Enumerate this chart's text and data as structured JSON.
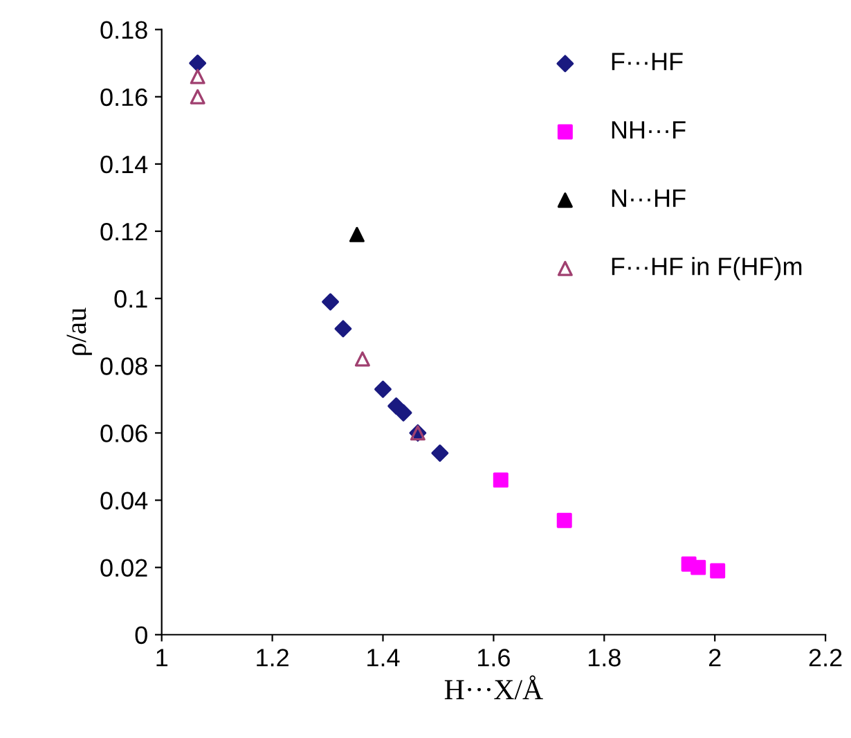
{
  "chart_data": {
    "type": "scatter",
    "xlabel": "H···X/Å",
    "ylabel": "ρ/au",
    "xlim": [
      1,
      2.2
    ],
    "xticks": [
      1,
      1.2,
      1.4,
      1.6,
      1.8,
      2,
      2.2
    ],
    "ylim": [
      0,
      0.18
    ],
    "yticks": [
      0,
      0.02,
      0.04,
      0.06,
      0.08,
      0.1,
      0.12,
      0.14,
      0.16,
      0.18
    ],
    "grid": false,
    "legend": "top right",
    "series": [
      {
        "name": "F···HF",
        "color": "#1a1a80",
        "marker": "diamond",
        "x": [
          1.065,
          1.305,
          1.328,
          1.4,
          1.424,
          1.437,
          1.463,
          1.503
        ],
        "values": [
          0.17,
          0.099,
          0.091,
          0.073,
          0.068,
          0.066,
          0.06,
          0.054
        ]
      },
      {
        "name": "NH···F",
        "color": "#ff00ff",
        "marker": "square",
        "x": [
          1.613,
          1.728,
          1.953,
          1.97,
          2.005
        ],
        "values": [
          0.046,
          0.034,
          0.021,
          0.02,
          0.019
        ]
      },
      {
        "name": "N···HF",
        "color": "#000000",
        "marker": "triangle",
        "x": [
          1.353
        ],
        "values": [
          0.119
        ]
      },
      {
        "name": "F···HF in F(HF)m",
        "color": "#a04070",
        "marker": "triangle-open",
        "x": [
          1.065,
          1.065,
          1.363,
          1.463
        ],
        "values": [
          0.166,
          0.16,
          0.082,
          0.06
        ]
      }
    ]
  }
}
